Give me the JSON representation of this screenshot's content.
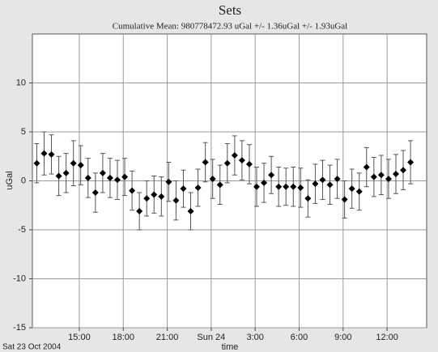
{
  "chart_data": {
    "type": "errorbar",
    "title": "Sets",
    "subtitle": "Cumulative Mean:  980778472.93 uGal   +/- 1.36uGal +/-  1.93uGal",
    "x_label": "time",
    "y_label": "uGal",
    "date_label": "Sat 23 Oct 2004",
    "xlim": [
      11.8,
      38.7
    ],
    "ylim": [
      -15,
      15
    ],
    "xticks": [
      {
        "value": 15,
        "label": "15:00"
      },
      {
        "value": 18,
        "label": "18:00"
      },
      {
        "value": 21,
        "label": "21:00"
      },
      {
        "value": 24,
        "label": "Sun 24"
      },
      {
        "value": 27,
        "label": "3:00"
      },
      {
        "value": 30,
        "label": "6:00"
      },
      {
        "value": 33,
        "label": "9:00"
      },
      {
        "value": 36,
        "label": "12:00"
      }
    ],
    "yticks": [
      -15,
      -10,
      -5,
      0,
      5,
      10
    ],
    "grid": true,
    "x": [
      12.1,
      12.6,
      13.1,
      13.6,
      14.1,
      14.6,
      15.1,
      15.6,
      16.1,
      16.6,
      17.1,
      17.6,
      18.1,
      18.6,
      19.1,
      19.6,
      20.1,
      20.6,
      21.1,
      21.6,
      22.1,
      22.6,
      23.1,
      23.6,
      24.1,
      24.6,
      25.1,
      25.6,
      26.1,
      26.6,
      27.1,
      27.6,
      28.1,
      28.6,
      29.1,
      29.6,
      30.1,
      30.6,
      31.1,
      31.6,
      32.1,
      32.6,
      33.1,
      33.6,
      34.1,
      34.6,
      35.1,
      35.6,
      36.1,
      36.6,
      37.1,
      37.6
    ],
    "series": [
      {
        "color": "#000000",
        "values": [
          1.8,
          2.8,
          2.7,
          0.5,
          0.8,
          1.8,
          1.6,
          0.3,
          -1.2,
          0.8,
          0.3,
          0.1,
          0.4,
          -1.0,
          -3.1,
          -1.8,
          -1.4,
          -1.6,
          -0.1,
          -2.0,
          -0.8,
          -3.1,
          -0.7,
          1.9,
          0.2,
          -0.4,
          1.8,
          2.6,
          2.1,
          1.7,
          -0.6,
          -0.2,
          0.6,
          -0.6,
          -0.6,
          -0.6,
          -0.7,
          -1.8,
          -0.3,
          0.1,
          -0.4,
          0.2,
          -1.9,
          -0.8,
          -1.1,
          1.4,
          0.4,
          0.6,
          0.2,
          0.7,
          1.1,
          1.9
        ],
        "errors": [
          2.0,
          2.2,
          2.0,
          2.0,
          2.0,
          2.3,
          2.0,
          2.0,
          2.0,
          2.0,
          2.0,
          2.0,
          1.9,
          2.0,
          1.9,
          1.8,
          1.9,
          2.0,
          2.0,
          2.0,
          1.9,
          1.9,
          1.9,
          2.0,
          2.0,
          2.0,
          2.0,
          2.0,
          2.0,
          2.0,
          2.0,
          2.0,
          1.9,
          2.0,
          1.9,
          2.0,
          2.0,
          1.9,
          2.0,
          2.0,
          2.0,
          2.0,
          1.9,
          2.0,
          1.9,
          2.0,
          2.0,
          2.0,
          2.0,
          2.0,
          2.0,
          2.2
        ]
      }
    ]
  }
}
